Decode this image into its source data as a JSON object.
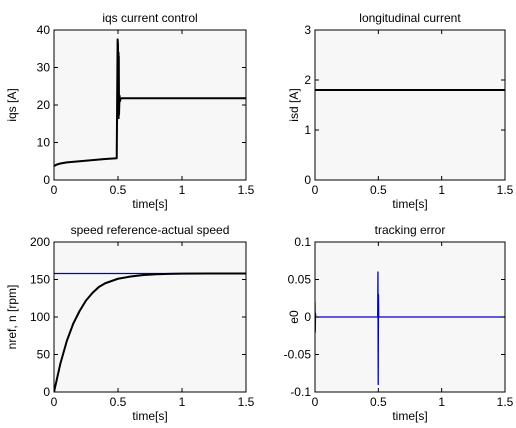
{
  "chart_data": [
    {
      "type": "line",
      "title": "iqs current control",
      "xlabel": "time[s]",
      "ylabel": "iqs [A]",
      "xlim": [
        0,
        1.5
      ],
      "ylim": [
        0,
        40
      ],
      "xticks": [
        0,
        0.5,
        1,
        1.5
      ],
      "xtick_labels": [
        "0",
        "0.5",
        "1",
        "1.5"
      ],
      "yticks": [
        0,
        10,
        20,
        30,
        40
      ],
      "ytick_labels": [
        "0",
        "10",
        "20",
        "30",
        "40"
      ],
      "grid": false,
      "series": [
        {
          "color": "#000000",
          "x": [
            0,
            0.005,
            0.02,
            0.05,
            0.1,
            0.2,
            0.3,
            0.4,
            0.49,
            0.497,
            0.5,
            0.502,
            0.504,
            0.505,
            0.506,
            0.508,
            0.512,
            0.515,
            0.52,
            0.53,
            0.55,
            0.6,
            0.8,
            1.0,
            1.2,
            1.5
          ],
          "y": [
            4.0,
            3.8,
            4.1,
            4.4,
            4.7,
            5.0,
            5.3,
            5.6,
            5.8,
            37.5,
            36,
            17,
            34,
            16.5,
            33,
            17.5,
            22.5,
            21,
            21.7,
            21.8,
            21.8,
            21.8,
            21.8,
            21.8,
            21.8,
            21.8
          ]
        }
      ]
    },
    {
      "type": "line",
      "title": "longitudinal current",
      "xlabel": "time[s]",
      "ylabel": "isd [A]",
      "xlim": [
        0,
        1.5
      ],
      "ylim": [
        0,
        3
      ],
      "xticks": [
        0,
        0.5,
        1,
        1.5
      ],
      "xtick_labels": [
        "0",
        "0.5",
        "1",
        "1.5"
      ],
      "yticks": [
        0,
        1,
        2,
        3
      ],
      "ytick_labels": [
        "0",
        "1",
        "2",
        "3"
      ],
      "grid": false,
      "series": [
        {
          "color": "#000000",
          "x": [
            0,
            1.5
          ],
          "y": [
            1.8,
            1.8
          ]
        }
      ]
    },
    {
      "type": "line",
      "title": "speed reference-actual speed",
      "xlabel": "time[s]",
      "ylabel": "nref, n [rpm]",
      "xlim": [
        0,
        1.5
      ],
      "ylim": [
        0,
        200
      ],
      "xticks": [
        0,
        0.5,
        1,
        1.5
      ],
      "xtick_labels": [
        "0",
        "0.5",
        "1",
        "1.5"
      ],
      "yticks": [
        0,
        50,
        100,
        150,
        200
      ],
      "ytick_labels": [
        "0",
        "50",
        "100",
        "150",
        "200"
      ],
      "grid": false,
      "series": [
        {
          "color": "#0000cc",
          "x": [
            0,
            1.5
          ],
          "y": [
            158,
            158
          ]
        },
        {
          "color": "#000000",
          "x": [
            0,
            0.05,
            0.1,
            0.15,
            0.2,
            0.25,
            0.3,
            0.35,
            0.4,
            0.5,
            0.6,
            0.7,
            0.8,
            0.9,
            1.0,
            1.2,
            1.5
          ],
          "y": [
            0,
            38,
            68,
            91,
            108,
            122,
            132,
            140,
            145,
            151,
            154,
            156,
            157,
            157.5,
            157.8,
            158,
            158
          ]
        }
      ]
    },
    {
      "type": "line",
      "title": "tracking error",
      "xlabel": "time[s]",
      "ylabel": "e0",
      "xlim": [
        0,
        1.5
      ],
      "ylim": [
        -0.1,
        0.1
      ],
      "xticks": [
        0,
        0.5,
        1,
        1.5
      ],
      "xtick_labels": [
        "0",
        "0.5",
        "1",
        "1.5"
      ],
      "yticks": [
        -0.1,
        -0.05,
        0,
        0.05,
        0.1
      ],
      "ytick_labels": [
        "-0.1",
        "-0.05",
        "0",
        "0.05",
        "0.1"
      ],
      "grid": false,
      "series": [
        {
          "color": "#0000cc",
          "x": [
            0,
            0.002,
            0.004,
            0.006,
            0.01,
            0.495,
            0.497,
            0.499,
            0.501,
            0.503,
            0.51,
            1.5
          ],
          "y": [
            0.02,
            -0.02,
            0.005,
            0,
            0,
            0,
            0.06,
            -0.09,
            0.03,
            0,
            0,
            0
          ]
        }
      ]
    }
  ]
}
